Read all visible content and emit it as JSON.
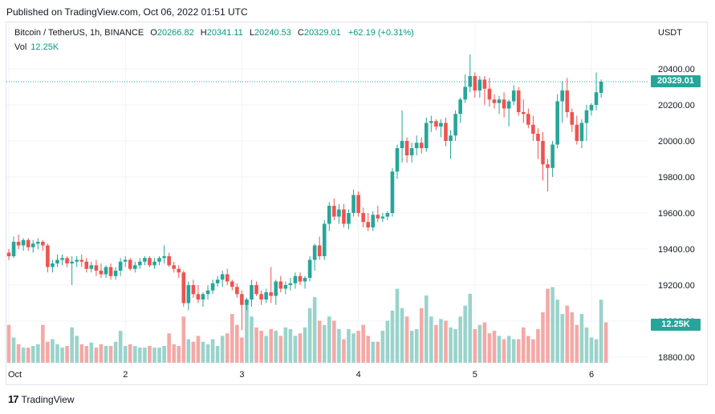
{
  "header": {
    "published": "Published on TradingView.com, Oct 06, 2022 01:51 UTC"
  },
  "legend": {
    "symbol": "Bitcoin / TetherUS, 1h, BINANCE",
    "o_label": "O",
    "o_value": "20266.82",
    "h_label": "H",
    "h_value": "20341.11",
    "l_label": "L",
    "l_value": "20240.53",
    "c_label": "C",
    "c_value": "20329.01",
    "change": "+62.19 (+0.31%)",
    "vol_label": "Vol",
    "vol_value": "12.25K"
  },
  "axis": {
    "currency": "USDT"
  },
  "last_price_tag": "20329.01",
  "last_volume_tag": "12.25K",
  "brand": {
    "name": "TradingView"
  },
  "colors": {
    "up": "#26a69a",
    "down": "#ef5350",
    "up_vol": "#9ad3cb",
    "down_vol": "#f3a9a6",
    "grid": "#f0f3fa"
  },
  "chart_data": {
    "type": "candlestick",
    "ylim": [
      18750,
      20500
    ],
    "y_ticks": [
      18800,
      19000,
      19200,
      19400,
      19600,
      19800,
      20000,
      20200,
      20400
    ],
    "y_tick_labels": [
      "18800.00",
      "19000.00",
      "19200.00",
      "19400.00",
      "19600.00",
      "19800.00",
      "20000.00",
      "20200.00",
      "20400.00"
    ],
    "x_ticks": [
      {
        "label": "Oct",
        "index": 0
      },
      {
        "label": "2",
        "index": 24
      },
      {
        "label": "3",
        "index": 48
      },
      {
        "label": "4",
        "index": 72
      },
      {
        "label": "5",
        "index": 96
      },
      {
        "label": "6",
        "index": 120
      }
    ],
    "last_price": 20329.01,
    "last_volume": "12.25K",
    "candles": [
      [
        19380,
        19400,
        19340,
        19360
      ],
      [
        19360,
        19470,
        19350,
        19440
      ],
      [
        19440,
        19480,
        19400,
        19420
      ],
      [
        19420,
        19460,
        19390,
        19450
      ],
      [
        19450,
        19460,
        19390,
        19410
      ],
      [
        19410,
        19450,
        19380,
        19430
      ],
      [
        19430,
        19460,
        19400,
        19440
      ],
      [
        19440,
        19450,
        19390,
        19420
      ],
      [
        19420,
        19430,
        19270,
        19300
      ],
      [
        19300,
        19340,
        19270,
        19320
      ],
      [
        19320,
        19370,
        19300,
        19340
      ],
      [
        19340,
        19370,
        19310,
        19350
      ],
      [
        19350,
        19360,
        19300,
        19320
      ],
      [
        19320,
        19360,
        19200,
        19330
      ],
      [
        19330,
        19360,
        19300,
        19340
      ],
      [
        19340,
        19370,
        19300,
        19330
      ],
      [
        19330,
        19350,
        19270,
        19290
      ],
      [
        19290,
        19330,
        19270,
        19310
      ],
      [
        19310,
        19340,
        19250,
        19280
      ],
      [
        19280,
        19320,
        19240,
        19260
      ],
      [
        19260,
        19310,
        19240,
        19300
      ],
      [
        19300,
        19320,
        19230,
        19250
      ],
      [
        19250,
        19300,
        19230,
        19280
      ],
      [
        19280,
        19350,
        19250,
        19330
      ],
      [
        19330,
        19360,
        19300,
        19340
      ],
      [
        19340,
        19350,
        19280,
        19290
      ],
      [
        19290,
        19330,
        19270,
        19310
      ],
      [
        19310,
        19350,
        19290,
        19330
      ],
      [
        19330,
        19360,
        19310,
        19350
      ],
      [
        19350,
        19360,
        19300,
        19310
      ],
      [
        19310,
        19350,
        19290,
        19330
      ],
      [
        19330,
        19360,
        19310,
        19350
      ],
      [
        19350,
        19420,
        19320,
        19360
      ],
      [
        19360,
        19380,
        19300,
        19310
      ],
      [
        19310,
        19330,
        19270,
        19290
      ],
      [
        19290,
        19310,
        19240,
        19270
      ],
      [
        19270,
        19280,
        19080,
        19100
      ],
      [
        19100,
        19220,
        19060,
        19200
      ],
      [
        19200,
        19230,
        19130,
        19150
      ],
      [
        19150,
        19200,
        19100,
        19120
      ],
      [
        19120,
        19160,
        19080,
        19150
      ],
      [
        19150,
        19200,
        19120,
        19170
      ],
      [
        19170,
        19230,
        19150,
        19210
      ],
      [
        19210,
        19250,
        19190,
        19230
      ],
      [
        19230,
        19280,
        19190,
        19260
      ],
      [
        19260,
        19290,
        19200,
        19220
      ],
      [
        19220,
        19230,
        19170,
        19190
      ],
      [
        19190,
        19210,
        19130,
        19150
      ],
      [
        19150,
        19170,
        18950,
        19090
      ],
      [
        19090,
        19130,
        19060,
        19120
      ],
      [
        19120,
        19230,
        19080,
        19200
      ],
      [
        19200,
        19220,
        19140,
        19150
      ],
      [
        19150,
        19170,
        19090,
        19120
      ],
      [
        19120,
        19180,
        19100,
        19160
      ],
      [
        19160,
        19300,
        19100,
        19140
      ],
      [
        19140,
        19230,
        19090,
        19220
      ],
      [
        19220,
        19250,
        19160,
        19180
      ],
      [
        19180,
        19220,
        19150,
        19200
      ],
      [
        19200,
        19240,
        19170,
        19210
      ],
      [
        19210,
        19270,
        19180,
        19250
      ],
      [
        19250,
        19270,
        19200,
        19220
      ],
      [
        19220,
        19250,
        19180,
        19240
      ],
      [
        19240,
        19360,
        19220,
        19340
      ],
      [
        19340,
        19430,
        19280,
        19420
      ],
      [
        19420,
        19470,
        19340,
        19360
      ],
      [
        19360,
        19560,
        19340,
        19540
      ],
      [
        19540,
        19660,
        19500,
        19640
      ],
      [
        19640,
        19680,
        19560,
        19580
      ],
      [
        19580,
        19650,
        19540,
        19620
      ],
      [
        19620,
        19650,
        19520,
        19540
      ],
      [
        19540,
        19620,
        19510,
        19600
      ],
      [
        19600,
        19730,
        19580,
        19700
      ],
      [
        19700,
        19720,
        19580,
        19600
      ],
      [
        19600,
        19630,
        19520,
        19550
      ],
      [
        19550,
        19600,
        19500,
        19520
      ],
      [
        19520,
        19610,
        19500,
        19590
      ],
      [
        19590,
        19640,
        19550,
        19570
      ],
      [
        19570,
        19600,
        19550,
        19580
      ],
      [
        19580,
        19610,
        19560,
        19600
      ],
      [
        19600,
        19850,
        19580,
        19830
      ],
      [
        19830,
        19980,
        19790,
        19960
      ],
      [
        19960,
        20170,
        19880,
        20000
      ],
      [
        20000,
        20020,
        19880,
        19920
      ],
      [
        19920,
        19990,
        19880,
        19960
      ],
      [
        19960,
        20030,
        19920,
        19990
      ],
      [
        19990,
        20020,
        19930,
        19960
      ],
      [
        19960,
        20130,
        19940,
        20100
      ],
      [
        20100,
        20140,
        20050,
        20110
      ],
      [
        20110,
        20120,
        20060,
        20080
      ],
      [
        20080,
        20120,
        20020,
        20100
      ],
      [
        20100,
        20130,
        19970,
        20000
      ],
      [
        20000,
        20060,
        19900,
        20030
      ],
      [
        20030,
        20170,
        20000,
        20150
      ],
      [
        20150,
        20240,
        20100,
        20230
      ],
      [
        20230,
        20370,
        20210,
        20300
      ],
      [
        20300,
        20480,
        20270,
        20360
      ],
      [
        20360,
        20380,
        20240,
        20280
      ],
      [
        20280,
        20360,
        20240,
        20340
      ],
      [
        20340,
        20360,
        20200,
        20290
      ],
      [
        20290,
        20350,
        20190,
        20230
      ],
      [
        20230,
        20260,
        20180,
        20210
      ],
      [
        20210,
        20250,
        20150,
        20230
      ],
      [
        20230,
        20270,
        20130,
        20180
      ],
      [
        20180,
        20230,
        20080,
        20220
      ],
      [
        20220,
        20310,
        20200,
        20280
      ],
      [
        20280,
        20300,
        20140,
        20160
      ],
      [
        20160,
        20230,
        20100,
        20150
      ],
      [
        20150,
        20180,
        20070,
        20090
      ],
      [
        20090,
        20140,
        20000,
        20040
      ],
      [
        20040,
        20070,
        19900,
        20000
      ],
      [
        20000,
        20050,
        19780,
        19870
      ],
      [
        19870,
        19900,
        19720,
        19850
      ],
      [
        19850,
        20000,
        19800,
        19980
      ],
      [
        19980,
        20260,
        19960,
        20220
      ],
      [
        20220,
        20330,
        20100,
        20280
      ],
      [
        20280,
        20350,
        20130,
        20160
      ],
      [
        20160,
        20180,
        20050,
        20090
      ],
      [
        20090,
        20140,
        19980,
        20000
      ],
      [
        20000,
        20120,
        19960,
        20100
      ],
      [
        20100,
        20200,
        20000,
        20170
      ],
      [
        20170,
        20210,
        20140,
        20200
      ],
      [
        20200,
        20380,
        20170,
        20270
      ],
      [
        20266.82,
        20341.11,
        20240.53,
        20329.01
      ]
    ],
    "volumes": [
      0.45,
      0.3,
      0.22,
      0.18,
      0.18,
      0.2,
      0.22,
      0.45,
      0.25,
      0.28,
      0.22,
      0.18,
      0.2,
      0.42,
      0.32,
      0.22,
      0.2,
      0.24,
      0.18,
      0.22,
      0.2,
      0.2,
      0.25,
      0.38,
      0.2,
      0.22,
      0.2,
      0.18,
      0.18,
      0.2,
      0.18,
      0.18,
      0.2,
      0.35,
      0.22,
      0.2,
      0.55,
      0.28,
      0.25,
      0.32,
      0.25,
      0.22,
      0.28,
      0.2,
      0.32,
      0.35,
      0.58,
      0.45,
      0.3,
      0.75,
      0.55,
      0.42,
      0.38,
      0.32,
      0.4,
      0.38,
      0.32,
      0.42,
      0.4,
      0.32,
      0.35,
      0.42,
      0.65,
      0.78,
      0.5,
      0.45,
      0.55,
      0.5,
      0.4,
      0.28,
      0.4,
      0.35,
      0.38,
      0.45,
      0.32,
      0.25,
      0.25,
      0.38,
      0.5,
      0.62,
      0.88,
      0.65,
      0.55,
      0.38,
      0.4,
      0.65,
      0.8,
      0.55,
      0.45,
      0.52,
      0.5,
      0.42,
      0.4,
      0.55,
      0.68,
      0.82,
      0.4,
      0.45,
      0.48,
      0.35,
      0.38,
      0.32,
      0.28,
      0.32,
      0.28,
      0.28,
      0.42,
      0.32,
      0.28,
      0.4,
      0.6,
      0.88,
      0.9,
      0.75,
      0.58,
      0.68,
      0.6,
      0.45,
      0.58,
      0.42,
      0.3,
      0.28,
      0.75,
      0.48
    ]
  }
}
